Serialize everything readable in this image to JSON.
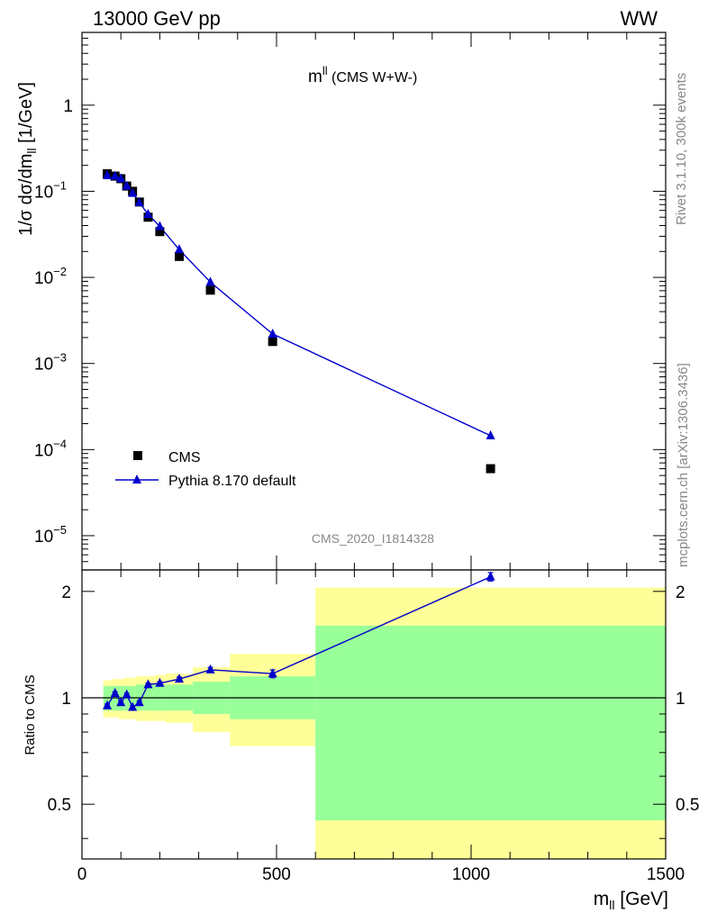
{
  "header": {
    "left": "13000 GeV pp",
    "right": "WW"
  },
  "side_text": {
    "rivet": "Rivet 3.1.10,  300k events",
    "mcplots": "mcplots.cern.ch [arXiv:1306.3436]"
  },
  "analysis_id": "CMS_2020_I1814328",
  "colors": {
    "cms": "#000000",
    "pythia": "#0000cc",
    "band_inner": "#99ff99",
    "band_outer": "#ffff99"
  },
  "chart_data": [
    {
      "type": "scatter",
      "title_main": "m",
      "title_sup": "ll",
      "title_rest": " (CMS W+W-)",
      "ylabel": "1/σ dσ/dm",
      "ylabel_sub": "ll",
      "ylabel_unit": " [1/GeV]",
      "yscale": "log",
      "ylim": [
        4e-06,
        7
      ],
      "xlim": [
        0,
        1500
      ],
      "y_tick_labels": [
        {
          "base": "10",
          "exp": "−5",
          "value": 1e-05
        },
        {
          "base": "10",
          "exp": "−4",
          "value": 0.0001
        },
        {
          "base": "10",
          "exp": "−3",
          "value": 0.001
        },
        {
          "base": "10",
          "exp": "−2",
          "value": 0.01
        },
        {
          "base": "10",
          "exp": "−1",
          "value": 0.1
        },
        {
          "base": "1",
          "exp": "",
          "value": 1
        }
      ],
      "legend": {
        "placement": "bottom-left",
        "entries": [
          "CMS",
          "Pythia 8.170 default"
        ]
      },
      "series": [
        {
          "name": "CMS",
          "marker": "square",
          "x": [
            65,
            85,
            100,
            115,
            130,
            147.5,
            170,
            200,
            250,
            330,
            490,
            1050
          ],
          "y": [
            0.16,
            0.15,
            0.14,
            0.115,
            0.1,
            0.075,
            0.05,
            0.034,
            0.0175,
            0.0071,
            0.0018,
            6e-05
          ]
        },
        {
          "name": "Pythia 8.170 default",
          "marker": "triangle",
          "line": true,
          "x": [
            65,
            85,
            100,
            115,
            130,
            147.5,
            170,
            200,
            250,
            330,
            490,
            1050
          ],
          "y": [
            0.152,
            0.15,
            0.14,
            0.115,
            0.095,
            0.074,
            0.054,
            0.039,
            0.021,
            0.0088,
            0.0022,
            0.000145
          ]
        }
      ]
    },
    {
      "type": "line",
      "ylabel": "Ratio to CMS",
      "xlabel": "m",
      "xlabel_sub": "ll",
      "xlabel_unit": " [GeV]",
      "ylim": [
        0.35,
        2.3
      ],
      "xlim": [
        0,
        1500
      ],
      "y_ticks": [
        0.5,
        1,
        2
      ],
      "x_ticks": [
        0,
        500,
        1000,
        1500
      ],
      "reference_line": 1,
      "bands": [
        {
          "x0": 55,
          "x1": 75,
          "inner": [
            0.92,
            1.08
          ],
          "outer": [
            0.88,
            1.12
          ]
        },
        {
          "x0": 75,
          "x1": 95,
          "inner": [
            0.92,
            1.08
          ],
          "outer": [
            0.88,
            1.13
          ]
        },
        {
          "x0": 95,
          "x1": 108,
          "inner": [
            0.92,
            1.08
          ],
          "outer": [
            0.87,
            1.13
          ]
        },
        {
          "x0": 108,
          "x1": 122,
          "inner": [
            0.92,
            1.08
          ],
          "outer": [
            0.87,
            1.14
          ]
        },
        {
          "x0": 122,
          "x1": 138,
          "inner": [
            0.92,
            1.08
          ],
          "outer": [
            0.87,
            1.14
          ]
        },
        {
          "x0": 138,
          "x1": 158,
          "inner": [
            0.92,
            1.09
          ],
          "outer": [
            0.86,
            1.15
          ]
        },
        {
          "x0": 158,
          "x1": 185,
          "inner": [
            0.92,
            1.09
          ],
          "outer": [
            0.86,
            1.15
          ]
        },
        {
          "x0": 185,
          "x1": 215,
          "inner": [
            0.92,
            1.09
          ],
          "outer": [
            0.86,
            1.16
          ]
        },
        {
          "x0": 215,
          "x1": 285,
          "inner": [
            0.92,
            1.09
          ],
          "outer": [
            0.85,
            1.17
          ]
        },
        {
          "x0": 285,
          "x1": 380,
          "inner": [
            0.9,
            1.11
          ],
          "outer": [
            0.8,
            1.22
          ]
        },
        {
          "x0": 380,
          "x1": 600,
          "inner": [
            0.87,
            1.15
          ],
          "outer": [
            0.73,
            1.33
          ]
        },
        {
          "x0": 600,
          "x1": 1500,
          "inner": [
            0.45,
            1.6
          ],
          "outer": [
            0.35,
            2.05
          ]
        }
      ],
      "series": [
        {
          "name": "Pythia 8.170 default",
          "x": [
            65,
            85,
            100,
            115,
            130,
            147.5,
            170,
            200,
            250,
            330,
            490,
            1050
          ],
          "y": [
            0.95,
            1.03,
            0.97,
            1.02,
            0.94,
            0.97,
            1.09,
            1.1,
            1.13,
            1.2,
            1.17,
            2.2
          ],
          "err": [
            0.01,
            0.01,
            0.01,
            0.01,
            0.01,
            0.01,
            0.01,
            0.01,
            0.015,
            0.02,
            0.03,
            0.06
          ]
        }
      ]
    }
  ]
}
